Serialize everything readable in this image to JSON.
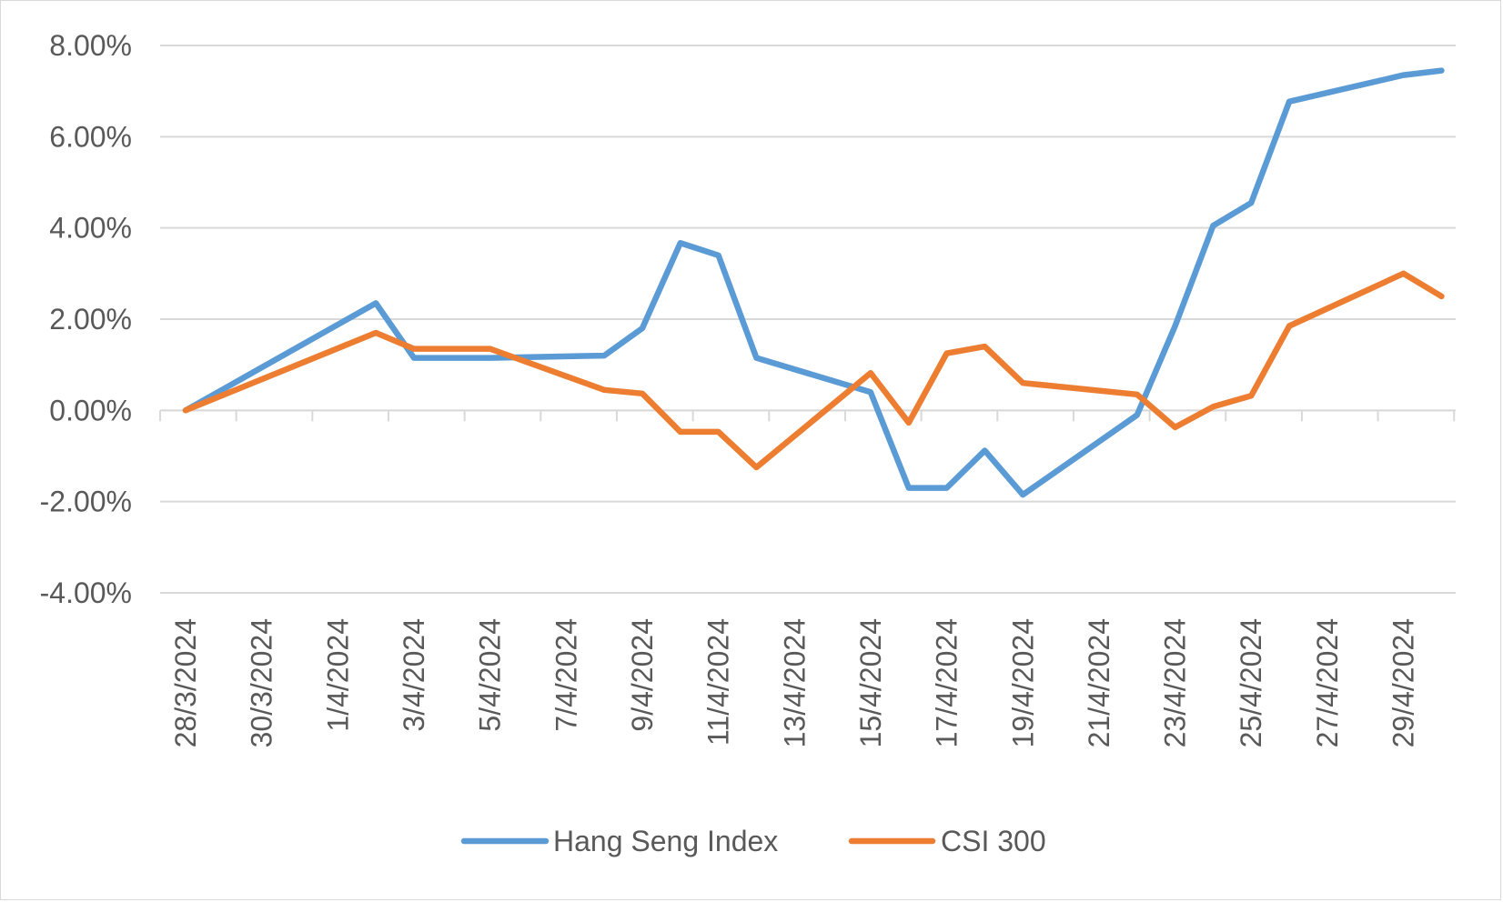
{
  "chart_data": {
    "type": "line",
    "title": "",
    "xlabel": "",
    "ylabel": "",
    "x_range": [
      "2024-03-28",
      "2024-04-30"
    ],
    "ylim": [
      -0.04,
      0.08
    ],
    "y_ticks": [
      0.08,
      0.06,
      0.04,
      0.02,
      0.0,
      -0.02,
      -0.04
    ],
    "y_tick_labels": [
      "8.00%",
      "6.00%",
      "4.00%",
      "2.00%",
      "0.00%",
      "-2.00%",
      "-4.00%"
    ],
    "x_tick_labels": [
      "28/3/2024",
      "30/3/2024",
      "1/4/2024",
      "3/4/2024",
      "5/4/2024",
      "7/4/2024",
      "9/4/2024",
      "11/4/2024",
      "13/4/2024",
      "15/4/2024",
      "17/4/2024",
      "19/4/2024",
      "21/4/2024",
      "23/4/2024",
      "25/4/2024",
      "27/4/2024",
      "29/4/2024"
    ],
    "x_tick_dates": [
      "2024-03-28",
      "2024-03-30",
      "2024-04-01",
      "2024-04-03",
      "2024-04-05",
      "2024-04-07",
      "2024-04-09",
      "2024-04-11",
      "2024-04-13",
      "2024-04-15",
      "2024-04-17",
      "2024-04-19",
      "2024-04-21",
      "2024-04-23",
      "2024-04-25",
      "2024-04-27",
      "2024-04-29"
    ],
    "grid": true,
    "legend_position": "bottom",
    "series": [
      {
        "name": "Hang Seng Index",
        "color": "#5B9BD5",
        "points": [
          [
            "2024-03-28",
            0.0
          ],
          [
            "2024-04-02",
            0.0235
          ],
          [
            "2024-04-03",
            0.0115
          ],
          [
            "2024-04-05",
            0.0115
          ],
          [
            "2024-04-08",
            0.012
          ],
          [
            "2024-04-09",
            0.018
          ],
          [
            "2024-04-10",
            0.0367
          ],
          [
            "2024-04-11",
            0.034
          ],
          [
            "2024-04-12",
            0.0115
          ],
          [
            "2024-04-15",
            0.004
          ],
          [
            "2024-04-16",
            -0.017
          ],
          [
            "2024-04-17",
            -0.017
          ],
          [
            "2024-04-18",
            -0.0088
          ],
          [
            "2024-04-19",
            -0.0185
          ],
          [
            "2024-04-22",
            -0.001
          ],
          [
            "2024-04-23",
            0.0185
          ],
          [
            "2024-04-24",
            0.0405
          ],
          [
            "2024-04-25",
            0.0455
          ],
          [
            "2024-04-26",
            0.0677
          ],
          [
            "2024-04-29",
            0.0735
          ],
          [
            "2024-04-30",
            0.0745
          ]
        ]
      },
      {
        "name": "CSI 300",
        "color": "#ED7D31",
        "points": [
          [
            "2024-03-28",
            0.0
          ],
          [
            "2024-04-02",
            0.017
          ],
          [
            "2024-04-03",
            0.0135
          ],
          [
            "2024-04-05",
            0.0135
          ],
          [
            "2024-04-08",
            0.0045
          ],
          [
            "2024-04-09",
            0.0037
          ],
          [
            "2024-04-10",
            -0.0047
          ],
          [
            "2024-04-11",
            -0.0047
          ],
          [
            "2024-04-12",
            -0.0125
          ],
          [
            "2024-04-15",
            0.0082
          ],
          [
            "2024-04-16",
            -0.0027
          ],
          [
            "2024-04-17",
            0.0125
          ],
          [
            "2024-04-18",
            0.014
          ],
          [
            "2024-04-19",
            0.006
          ],
          [
            "2024-04-22",
            0.0035
          ],
          [
            "2024-04-23",
            -0.0037
          ],
          [
            "2024-04-24",
            0.0008
          ],
          [
            "2024-04-25",
            0.0032
          ],
          [
            "2024-04-26",
            0.0185
          ],
          [
            "2024-04-29",
            0.03
          ],
          [
            "2024-04-30",
            0.025
          ]
        ]
      }
    ]
  }
}
